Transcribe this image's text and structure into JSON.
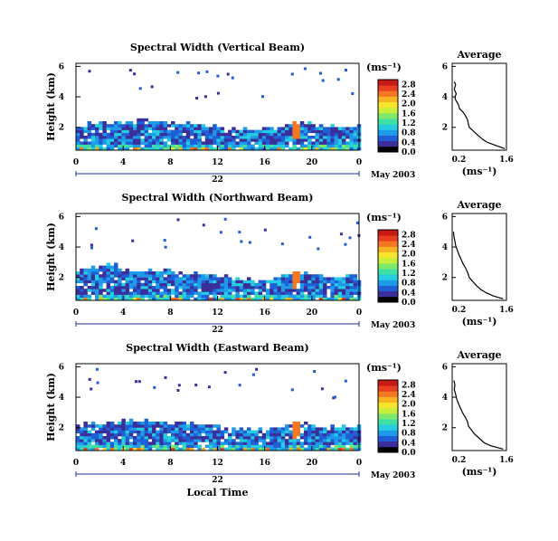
{
  "chart_data": [
    {
      "type": "heatmap",
      "title": "Spectral Width (Vertical Beam)",
      "ylabel": "Height (km)",
      "yticks": [
        "2",
        "4",
        "6"
      ],
      "xticks": [
        "0",
        "4",
        "8",
        "12",
        "16",
        "20",
        "0"
      ],
      "xlim": [
        0,
        24
      ],
      "ylim": [
        0.5,
        6.2
      ],
      "day_label": "22",
      "date_label": "May 2003",
      "colorbar": {
        "unit": "(ms⁻¹)",
        "ticks": [
          "0.0",
          "0.4",
          "0.8",
          "1.2",
          "1.6",
          "2.0",
          "2.4",
          "2.8"
        ],
        "range": [
          0,
          3.0
        ],
        "colors": [
          "#000000",
          "#3b2e9a",
          "#1f5fd6",
          "#1e9be8",
          "#25cde0",
          "#3fe0a5",
          "#7ee86a",
          "#c9ef3c",
          "#f6e52b",
          "#f8b323",
          "#f47722",
          "#e8401f",
          "#c61a16"
        ]
      },
      "profile": {
        "title": "Average",
        "xlabel": "(ms⁻¹)",
        "xticks": [
          "0.2",
          "1.6"
        ],
        "yticks": [
          "2",
          "4",
          "6"
        ],
        "xlim": [
          0,
          1.6
        ],
        "ylim": [
          0.5,
          6.2
        ],
        "height_km": [
          0.6,
          0.8,
          1.0,
          1.2,
          1.5,
          1.8,
          2.0,
          2.2,
          2.5,
          2.8,
          3.0,
          3.2,
          3.5,
          3.8,
          4.0,
          4.2,
          4.5,
          4.8,
          5.0
        ],
        "width_ms": [
          1.55,
          1.3,
          1.05,
          0.9,
          0.75,
          0.6,
          0.5,
          0.48,
          0.45,
          0.38,
          0.32,
          0.22,
          0.18,
          0.1,
          0.08,
          0.12,
          0.06,
          0.1,
          0.06
        ]
      }
    },
    {
      "type": "heatmap",
      "title": "Spectral Width (Northward Beam)",
      "ylabel": "Height (km)",
      "yticks": [
        "2",
        "4",
        "6"
      ],
      "xticks": [
        "0",
        "4",
        "8",
        "12",
        "16",
        "20",
        "0"
      ],
      "xlim": [
        0,
        24
      ],
      "ylim": [
        0.5,
        6.2
      ],
      "day_label": "22",
      "date_label": "May 2003",
      "colorbar": {
        "unit": "(ms⁻¹)",
        "ticks": [
          "0.0",
          "0.4",
          "0.8",
          "1.2",
          "1.6",
          "2.0",
          "2.4",
          "2.8"
        ],
        "range": [
          0,
          3.0
        ],
        "colors": [
          "#000000",
          "#3b2e9a",
          "#1f5fd6",
          "#1e9be8",
          "#25cde0",
          "#3fe0a5",
          "#7ee86a",
          "#c9ef3c",
          "#f6e52b",
          "#f8b323",
          "#f47722",
          "#e8401f",
          "#c61a16"
        ]
      },
      "profile": {
        "title": "Average",
        "xlabel": "(ms⁻¹)",
        "xticks": [
          "0.2",
          "1.6"
        ],
        "yticks": [
          "2",
          "4",
          "6"
        ],
        "xlim": [
          0,
          1.6
        ],
        "ylim": [
          0.5,
          6.2
        ],
        "height_km": [
          0.6,
          0.8,
          1.0,
          1.2,
          1.5,
          1.8,
          2.0,
          2.3,
          2.6,
          2.9,
          3.2,
          3.5,
          3.8,
          4.1,
          4.4,
          4.7,
          5.0
        ],
        "width_ms": [
          1.5,
          1.2,
          1.0,
          0.85,
          0.7,
          0.58,
          0.5,
          0.46,
          0.4,
          0.32,
          0.26,
          0.2,
          0.15,
          0.1,
          0.08,
          0.05,
          0.04
        ]
      }
    },
    {
      "type": "heatmap",
      "title": "Spectral Width (Eastward Beam)",
      "ylabel": "Height (km)",
      "yticks": [
        "2",
        "4",
        "6"
      ],
      "xticks": [
        "0",
        "4",
        "8",
        "12",
        "16",
        "20",
        "0"
      ],
      "xlim": [
        0,
        24
      ],
      "ylim": [
        0.5,
        6.2
      ],
      "day_label": "22",
      "date_label": "May 2003",
      "colorbar": {
        "unit": "(ms⁻¹)",
        "ticks": [
          "0.0",
          "0.4",
          "0.8",
          "1.2",
          "1.6",
          "2.0",
          "2.4",
          "2.8"
        ],
        "range": [
          0,
          3.0
        ],
        "colors": [
          "#000000",
          "#3b2e9a",
          "#1f5fd6",
          "#1e9be8",
          "#25cde0",
          "#3fe0a5",
          "#7ee86a",
          "#c9ef3c",
          "#f6e52b",
          "#f8b323",
          "#f47722",
          "#e8401f",
          "#c61a16"
        ]
      },
      "profile": {
        "title": "Average",
        "xlabel": "(ms⁻¹)",
        "xticks": [
          "0.2",
          "1.6"
        ],
        "yticks": [
          "2",
          "4",
          "6"
        ],
        "xlim": [
          0,
          1.6
        ],
        "ylim": [
          0.5,
          6.2
        ],
        "height_km": [
          0.6,
          0.8,
          1.0,
          1.3,
          1.6,
          1.9,
          2.1,
          2.4,
          2.7,
          3.0,
          3.3,
          3.6,
          3.9,
          4.2,
          4.5,
          4.8,
          5.1
        ],
        "width_ms": [
          1.5,
          1.15,
          0.95,
          0.8,
          0.65,
          0.55,
          0.48,
          0.45,
          0.38,
          0.3,
          0.24,
          0.18,
          0.13,
          0.1,
          0.06,
          0.08,
          0.05
        ]
      }
    }
  ],
  "figure": {
    "xlabel": "Local Time"
  }
}
